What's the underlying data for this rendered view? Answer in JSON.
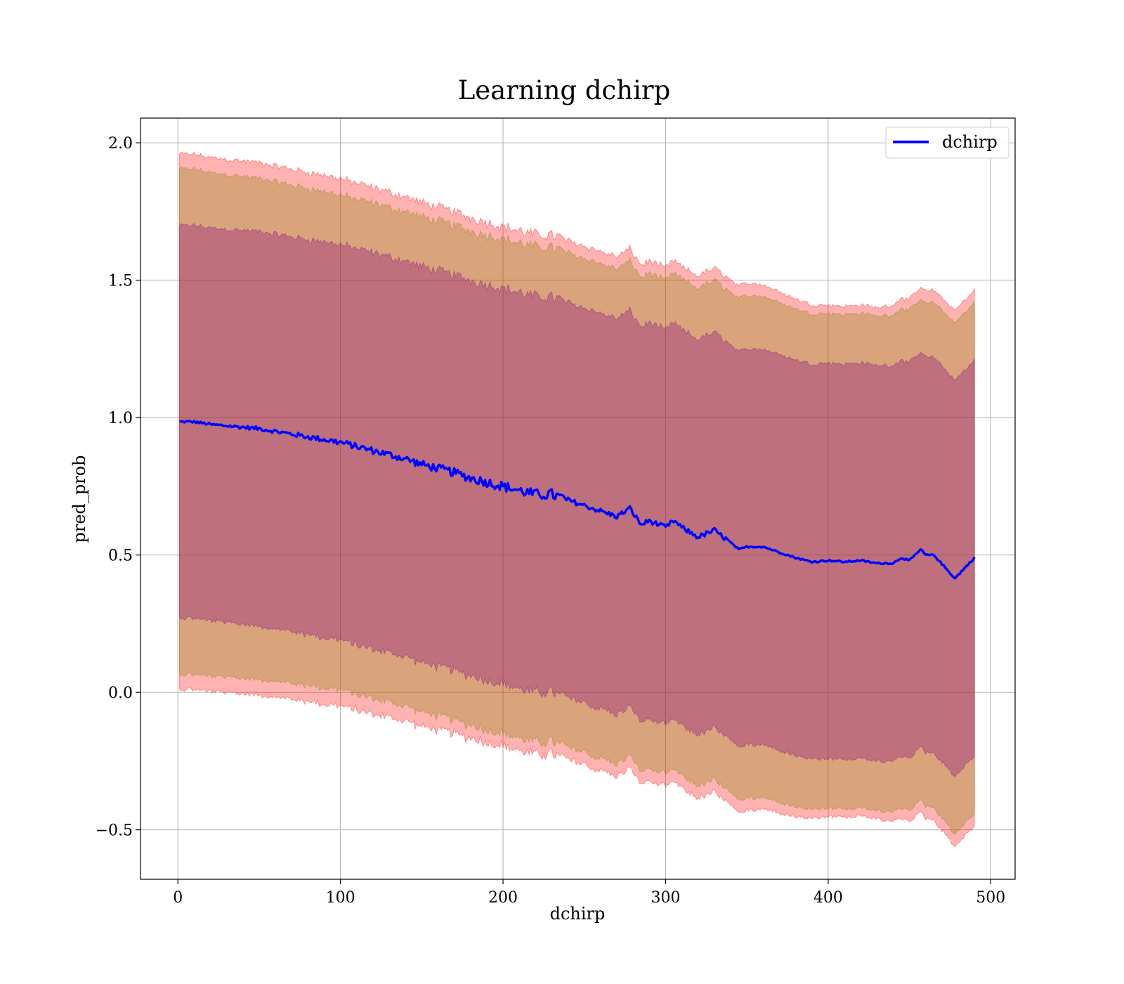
{
  "chart_data": {
    "type": "line",
    "title": "Learning dchirp",
    "xlabel": "dchirp",
    "ylabel": "pred_prob",
    "xlim": [
      -23,
      515
    ],
    "ylim": [
      -0.68,
      2.09
    ],
    "xticks": [
      0,
      100,
      200,
      300,
      400,
      500
    ],
    "yticks": [
      -0.5,
      0.0,
      0.5,
      1.0,
      1.5,
      2.0
    ],
    "xtick_labels": [
      "0",
      "100",
      "200",
      "300",
      "400",
      "500"
    ],
    "ytick_labels": [
      "−0.5",
      "0.0",
      "0.5",
      "1.0",
      "1.5",
      "2.0"
    ],
    "grid": true,
    "legend": {
      "position": "top-right",
      "entries": [
        "dchirp"
      ]
    },
    "colors": {
      "line": "#0000ff",
      "band_outer": "#ff0000",
      "band_middle": "#808000",
      "band_inner": "#800080"
    },
    "band_opacity": 0.3,
    "series": [
      {
        "name": "dchirp",
        "x": [
          1,
          10,
          20,
          30,
          40,
          50,
          60,
          70,
          80,
          90,
          100,
          110,
          120,
          130,
          140,
          150,
          160,
          170,
          180,
          190,
          200,
          210,
          220,
          230,
          240,
          250,
          260,
          270,
          278,
          285,
          290,
          300,
          305,
          310,
          320,
          330,
          340,
          345,
          350,
          360,
          370,
          380,
          390,
          400,
          410,
          420,
          430,
          440,
          445,
          450,
          457,
          460,
          465,
          478,
          490
        ],
        "y": [
          0.985,
          0.985,
          0.975,
          0.97,
          0.965,
          0.96,
          0.95,
          0.94,
          0.93,
          0.92,
          0.91,
          0.895,
          0.88,
          0.865,
          0.85,
          0.83,
          0.815,
          0.8,
          0.78,
          0.765,
          0.75,
          0.735,
          0.72,
          0.72,
          0.7,
          0.68,
          0.66,
          0.64,
          0.67,
          0.61,
          0.625,
          0.6,
          0.625,
          0.6,
          0.565,
          0.59,
          0.545,
          0.52,
          0.53,
          0.53,
          0.51,
          0.49,
          0.475,
          0.48,
          0.475,
          0.48,
          0.47,
          0.47,
          0.49,
          0.48,
          0.52,
          0.5,
          0.5,
          0.415,
          0.49
        ]
      }
    ],
    "bands": [
      {
        "name": "outer",
        "multiplier": 3,
        "sigma_x": [
          1,
          100,
          200,
          300,
          350,
          400,
          430,
          460,
          478,
          490
        ],
        "sigma": [
          0.325,
          0.32,
          0.315,
          0.315,
          0.32,
          0.31,
          0.31,
          0.32,
          0.325,
          0.325
        ]
      },
      {
        "name": "middle",
        "multiplier": 3,
        "sigma_x": [
          1,
          100,
          200,
          300,
          350,
          400,
          430,
          460,
          478,
          490
        ],
        "sigma": [
          0.307,
          0.3,
          0.3,
          0.3,
          0.305,
          0.3,
          0.3,
          0.305,
          0.31,
          0.31
        ]
      },
      {
        "name": "inner",
        "multiplier": 3,
        "sigma_x": [
          1,
          100,
          200,
          300,
          350,
          400,
          430,
          460,
          478,
          490
        ],
        "sigma": [
          0.238,
          0.24,
          0.24,
          0.24,
          0.24,
          0.24,
          0.24,
          0.24,
          0.24,
          0.24
        ]
      }
    ]
  }
}
